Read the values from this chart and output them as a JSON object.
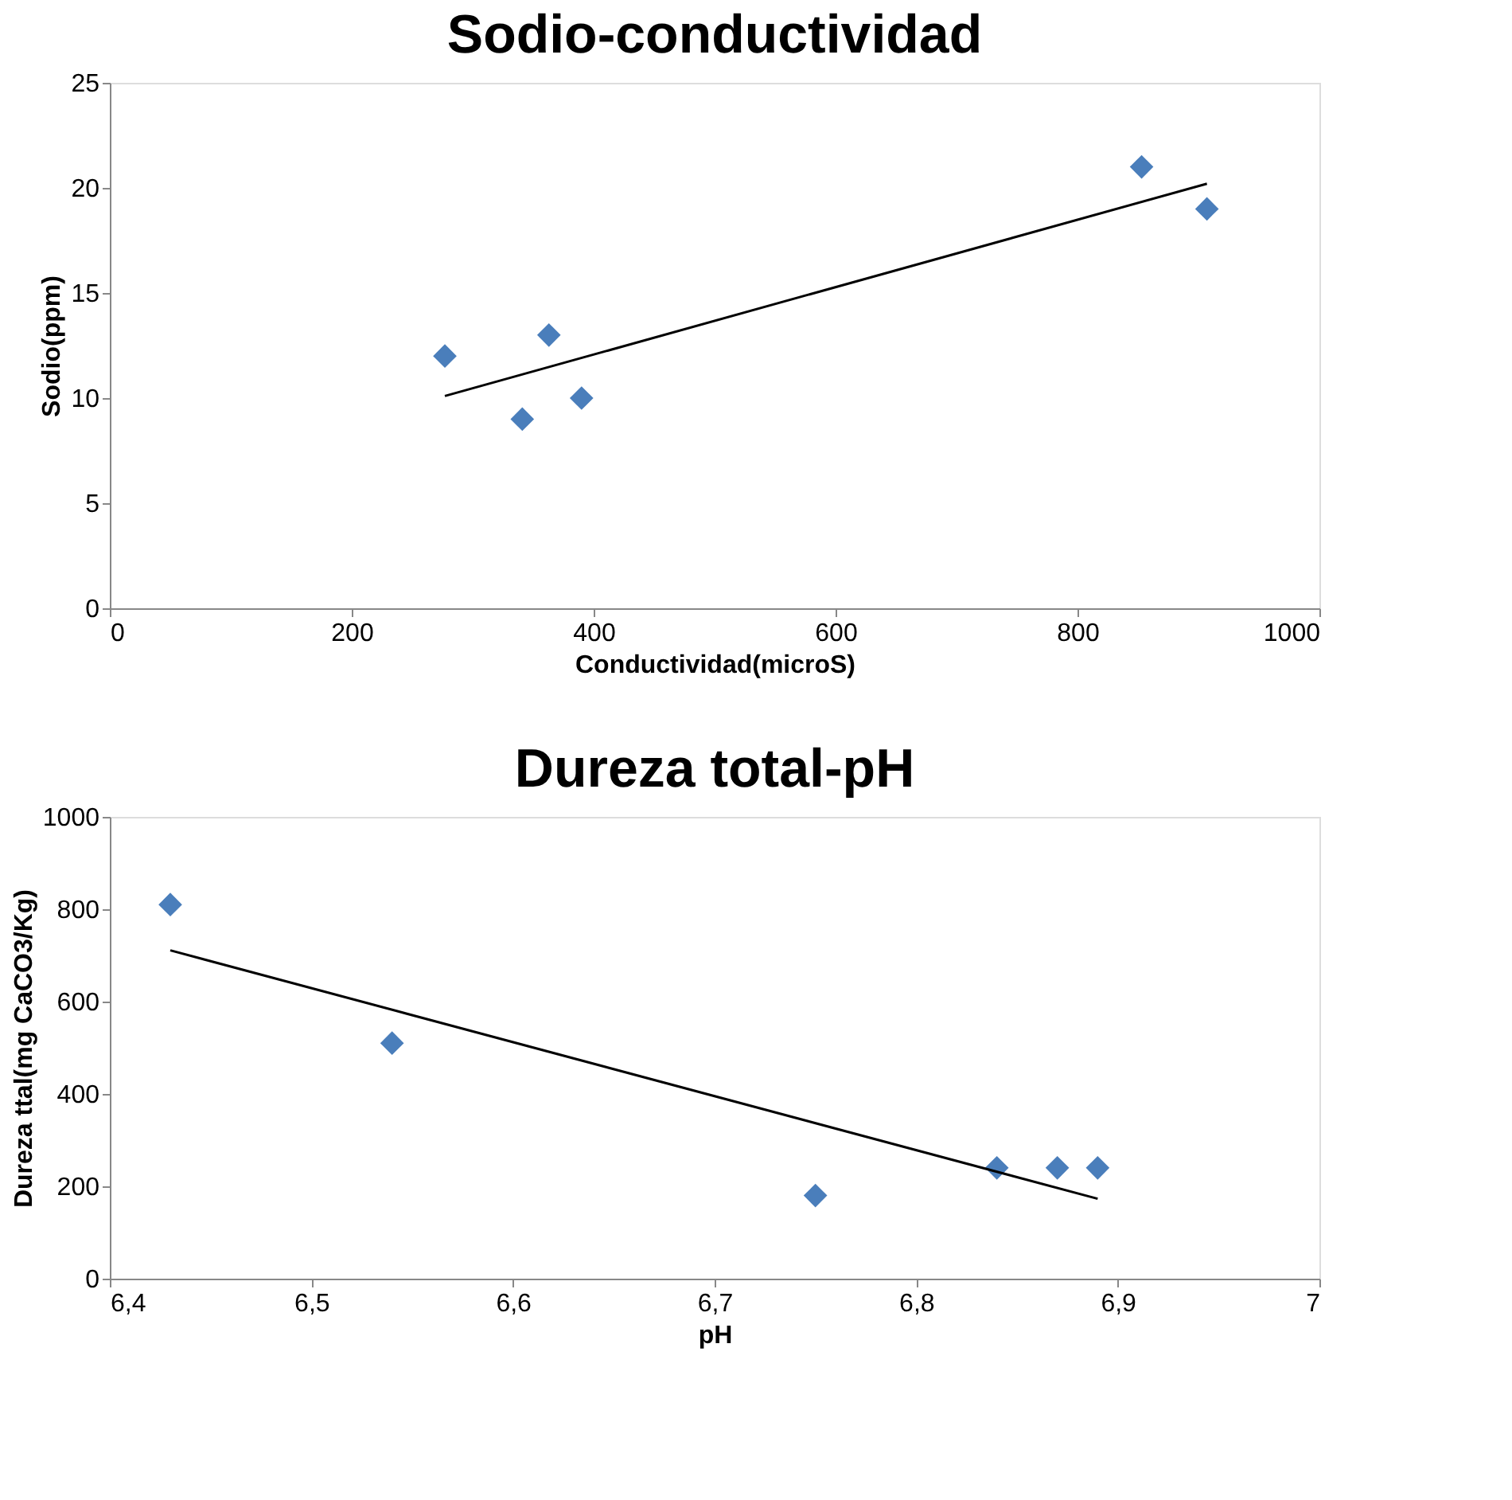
{
  "chart_data": [
    {
      "type": "scatter",
      "title": "Sodio-conductividad",
      "xlabel": "Conductividad(microS)",
      "ylabel": "Sodio(ppm)",
      "xlim": [
        0,
        1000
      ],
      "ylim": [
        0,
        25
      ],
      "xticks": [
        0,
        200,
        400,
        600,
        800,
        1000
      ],
      "yticks": [
        0,
        5,
        10,
        15,
        20,
        25
      ],
      "series": [
        {
          "marker": "diamond",
          "color": "#4a7ebb",
          "x": [
            277,
            341,
            363,
            390,
            853,
            907
          ],
          "values": [
            12,
            9,
            13,
            10,
            21,
            19
          ]
        },
        {
          "type": "line",
          "marker": "none",
          "line_style": "solid",
          "color": "#000000",
          "x": [
            277,
            907
          ],
          "values": [
            10.1,
            20.2
          ]
        }
      ]
    },
    {
      "type": "scatter",
      "title": "Dureza total-pH",
      "xlabel": "pH",
      "ylabel": "Dureza ttal(mg CaCO3/Kg)",
      "xlim": [
        6.4,
        7
      ],
      "ylim": [
        0,
        1000
      ],
      "xticks": [
        {
          "value": 6.4,
          "label": "6,4"
        },
        {
          "value": 6.5,
          "label": "6,5"
        },
        {
          "value": 6.6,
          "label": "6,6"
        },
        {
          "value": 6.7,
          "label": "6,7"
        },
        {
          "value": 6.8,
          "label": "6,8"
        },
        {
          "value": 6.9,
          "label": "6,9"
        },
        7
      ],
      "yticks": [
        0,
        200,
        400,
        600,
        800,
        1000
      ],
      "series": [
        {
          "marker": "diamond",
          "color": "#4a7ebb",
          "x": [
            6.43,
            6.54,
            6.75,
            6.84,
            6.87,
            6.89
          ],
          "values": [
            810,
            510,
            180,
            240,
            240,
            240
          ]
        },
        {
          "type": "line",
          "marker": "none",
          "line_style": "solid",
          "color": "#000000",
          "x": [
            6.43,
            6.89
          ],
          "values": [
            711,
            173
          ]
        }
      ]
    }
  ]
}
